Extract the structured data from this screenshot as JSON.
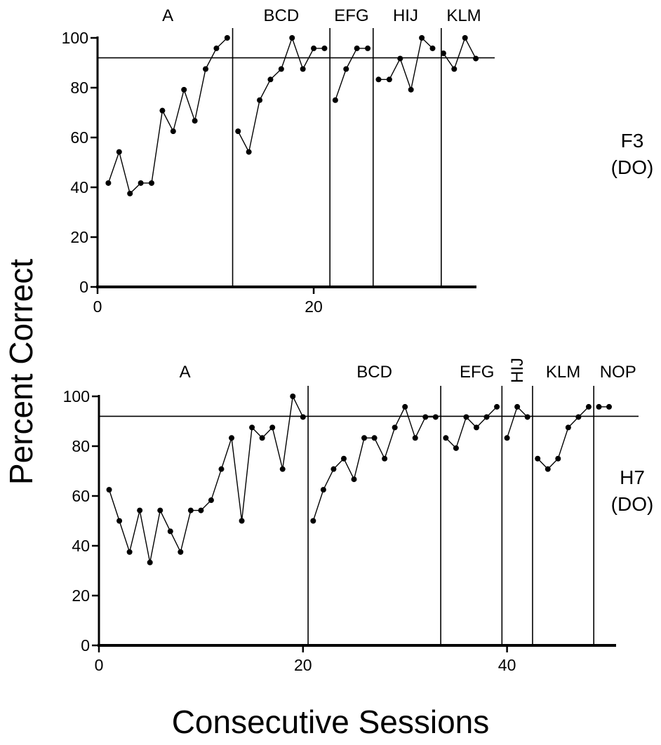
{
  "figure": {
    "ylabel": "Percent Correct",
    "xlabel": "Consecutive Sessions"
  },
  "chart_data": [
    {
      "type": "line",
      "subject": [
        "F3",
        "(DO)"
      ],
      "xlabel": "Consecutive Sessions",
      "ylabel": "Percent Correct",
      "xlim": [
        0,
        36
      ],
      "ylim": [
        0,
        100
      ],
      "xticks": [
        0,
        20
      ],
      "yticks": [
        0,
        20,
        40,
        60,
        80,
        100
      ],
      "criterion": 92,
      "grid": false,
      "phase_boundaries": [
        12.5,
        21.5,
        25.5,
        31.8
      ],
      "phases": [
        {
          "label": "A",
          "x": [
            1,
            2,
            3,
            4,
            5,
            6,
            7,
            8,
            9,
            10,
            11,
            12
          ],
          "y": [
            41.7,
            54.2,
            37.5,
            41.7,
            41.7,
            70.8,
            62.5,
            79.2,
            66.7,
            87.5,
            95.8,
            100
          ]
        },
        {
          "label": "BCD",
          "x": [
            13,
            14,
            15,
            16,
            17,
            18,
            19,
            20,
            21
          ],
          "y": [
            62.5,
            54.2,
            75,
            83.3,
            87.5,
            100,
            87.5,
            95.8,
            95.8
          ]
        },
        {
          "label": "EFG",
          "x": [
            22,
            23,
            24,
            25
          ],
          "y": [
            75,
            87.5,
            95.8,
            95.8
          ]
        },
        {
          "label": "HIJ",
          "x": [
            26,
            27,
            28,
            29,
            30,
            31
          ],
          "y": [
            83.3,
            83.3,
            91.7,
            79.2,
            100,
            95.8
          ]
        },
        {
          "label": "KLM",
          "x": [
            32,
            33,
            34,
            35
          ],
          "y": [
            93.8,
            87.5,
            100,
            91.7
          ]
        }
      ]
    },
    {
      "type": "line",
      "subject": [
        "H7",
        "(DO)"
      ],
      "xlabel": "Consecutive Sessions",
      "ylabel": "Percent Correct",
      "xlim": [
        0,
        50
      ],
      "ylim": [
        0,
        100
      ],
      "xticks": [
        0,
        20,
        40
      ],
      "yticks": [
        0,
        20,
        40,
        60,
        80,
        100
      ],
      "criterion": 92,
      "grid": false,
      "phase_boundaries": [
        20.5,
        33.5,
        39.5,
        42.5,
        48.5
      ],
      "phases": [
        {
          "label": "A",
          "x": [
            1,
            2,
            3,
            4,
            5,
            6,
            7,
            8,
            9,
            10,
            11,
            12,
            13,
            14,
            15,
            16,
            17,
            18,
            19,
            20
          ],
          "y": [
            62.5,
            50,
            37.5,
            54.2,
            33.3,
            54.2,
            45.8,
            37.5,
            54.2,
            54.2,
            58.3,
            70.8,
            83.3,
            50,
            87.5,
            83.3,
            87.5,
            70.8,
            100,
            91.7
          ]
        },
        {
          "label": "BCD",
          "x": [
            21,
            22,
            23,
            24,
            25,
            26,
            27,
            28,
            29,
            30,
            31,
            32,
            33
          ],
          "y": [
            50,
            62.5,
            70.8,
            75,
            66.7,
            83.3,
            83.3,
            75,
            87.5,
            95.8,
            83.3,
            91.7,
            91.7
          ]
        },
        {
          "label": "EFG",
          "x": [
            34,
            35,
            36,
            37,
            38,
            39
          ],
          "y": [
            83.3,
            79.2,
            91.7,
            87.5,
            91.7,
            95.8
          ]
        },
        {
          "label": "HIJ",
          "x": [
            40,
            41,
            42
          ],
          "y": [
            83.3,
            95.8,
            91.7
          ]
        },
        {
          "label": "KLM",
          "x": [
            43,
            44,
            45,
            46,
            47,
            48
          ],
          "y": [
            75,
            70.8,
            75,
            87.5,
            91.7,
            95.8
          ]
        },
        {
          "label": "NOP",
          "x": [
            49,
            50
          ],
          "y": [
            95.8,
            95.8
          ]
        }
      ]
    }
  ]
}
